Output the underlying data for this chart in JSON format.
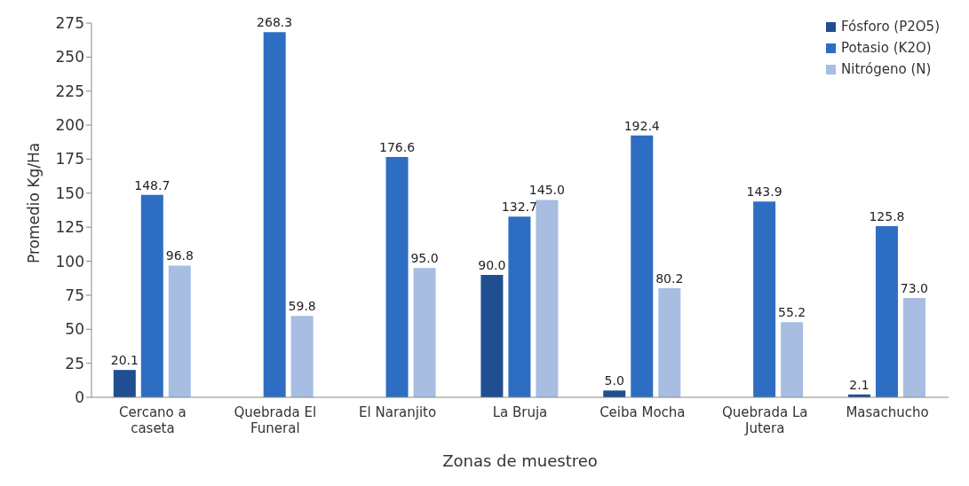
{
  "chart_data": {
    "type": "bar",
    "xlabel": "Zonas de muestreo",
    "ylabel": "Promedio Kg/Ha",
    "categories": [
      "Cercano a caseta",
      "Quebrada El Funeral",
      "El Naranjito",
      "La Bruja",
      "Ceiba Mocha",
      "Quebrada La Jutera",
      "Masachucho"
    ],
    "series": [
      {
        "name": "Fósforo (P2O5)",
        "color": "#1f4f91",
        "values": [
          20.1,
          null,
          null,
          90.0,
          5.0,
          null,
          2.1
        ],
        "value_labels": [
          "20.1",
          null,
          null,
          "90.0",
          "5.0",
          null,
          "2.1"
        ]
      },
      {
        "name": "Potasio (K2O)",
        "color": "#2e6ec2",
        "values": [
          148.7,
          268.3,
          176.6,
          132.7,
          192.4,
          143.9,
          125.8
        ],
        "value_labels": [
          "148.7",
          "268.3",
          "176.6",
          "132.7",
          "192.4",
          "143.9",
          "125.8"
        ]
      },
      {
        "name": "Nitrógeno (N)",
        "color": "#a7bde2",
        "values": [
          96.8,
          59.8,
          95.0,
          145.0,
          80.2,
          55.2,
          73.0
        ],
        "value_labels": [
          "96.8",
          "59.8",
          "95.0",
          "145.0",
          "80.2",
          "55.2",
          "73.0"
        ]
      }
    ],
    "ylim": [
      0,
      275
    ],
    "yticks": [
      0,
      25,
      50,
      75,
      100,
      125,
      150,
      175,
      200,
      225,
      250,
      275
    ],
    "grid": false,
    "legend": "top right"
  }
}
